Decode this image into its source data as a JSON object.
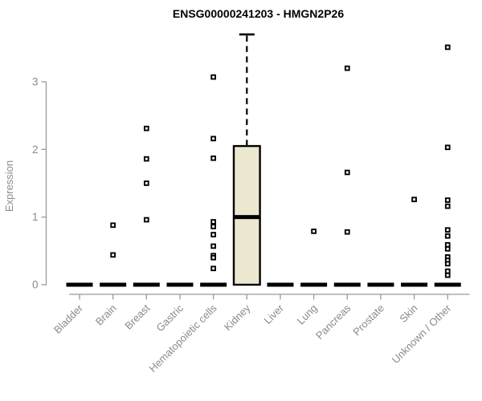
{
  "chart_data": {
    "type": "boxplot",
    "title": "ENSG00000241203 - HMGN2P26",
    "ylabel": "Expression",
    "yticks": [
      0,
      1,
      2,
      3
    ],
    "ylim": [
      0,
      3.85
    ],
    "grid": false,
    "categories": [
      "Bladder",
      "Brain",
      "Breast",
      "Gastric",
      "Hematopoietic cells",
      "Kidney",
      "Liver",
      "Lung",
      "Pancreas",
      "Prostate",
      "Skin",
      "Unknown / Other"
    ],
    "boxes": [
      {
        "category": "Bladder",
        "whisker_low": 0,
        "q1": 0,
        "median": 0,
        "q3": 0,
        "whisker_high": 0,
        "outliers": []
      },
      {
        "category": "Brain",
        "whisker_low": 0,
        "q1": 0,
        "median": 0,
        "q3": 0,
        "whisker_high": 0,
        "outliers": [
          0.88,
          0.44
        ]
      },
      {
        "category": "Breast",
        "whisker_low": 0,
        "q1": 0,
        "median": 0,
        "q3": 0,
        "whisker_high": 0,
        "outliers": [
          2.31,
          1.86,
          1.5,
          0.96
        ]
      },
      {
        "category": "Gastric",
        "whisker_low": 0,
        "q1": 0,
        "median": 0,
        "q3": 0,
        "whisker_high": 0,
        "outliers": []
      },
      {
        "category": "Hematopoietic cells",
        "whisker_low": 0,
        "q1": 0,
        "median": 0,
        "q3": 0,
        "whisker_high": 0,
        "outliers": [
          3.07,
          2.16,
          1.87,
          0.93,
          0.86,
          0.74,
          0.57,
          0.43,
          0.4,
          0.24
        ]
      },
      {
        "category": "Kidney",
        "whisker_low": 0,
        "q1": 0,
        "median": 1.0,
        "q3": 2.05,
        "whisker_high": 3.7,
        "outliers": []
      },
      {
        "category": "Liver",
        "whisker_low": 0,
        "q1": 0,
        "median": 0,
        "q3": 0,
        "whisker_high": 0,
        "outliers": []
      },
      {
        "category": "Lung",
        "whisker_low": 0,
        "q1": 0,
        "median": 0,
        "q3": 0,
        "whisker_high": 0,
        "outliers": [
          0.79
        ]
      },
      {
        "category": "Pancreas",
        "whisker_low": 0,
        "q1": 0,
        "median": 0,
        "q3": 0,
        "whisker_high": 0,
        "outliers": [
          3.2,
          1.66,
          0.78
        ]
      },
      {
        "category": "Prostate",
        "whisker_low": 0,
        "q1": 0,
        "median": 0,
        "q3": 0,
        "whisker_high": 0,
        "outliers": []
      },
      {
        "category": "Skin",
        "whisker_low": 0,
        "q1": 0,
        "median": 0,
        "q3": 0,
        "whisker_high": 0,
        "outliers": [
          1.26
        ]
      },
      {
        "category": "Unknown / Other",
        "whisker_low": 0,
        "q1": 0,
        "median": 0,
        "q3": 0,
        "whisker_high": 0,
        "outliers": [
          3.51,
          2.03,
          1.25,
          1.16,
          0.81,
          0.72,
          0.59,
          0.53,
          0.41,
          0.36,
          0.31,
          0.2,
          0.14
        ]
      }
    ],
    "colors": {
      "box_fill": "#ece8cf",
      "box_border": "#000000",
      "median": "#000000",
      "outlier": "#000000",
      "axis_line": "#999999",
      "axis_text": "#8a8a8a",
      "title_text": "#000000"
    },
    "legend": null
  }
}
